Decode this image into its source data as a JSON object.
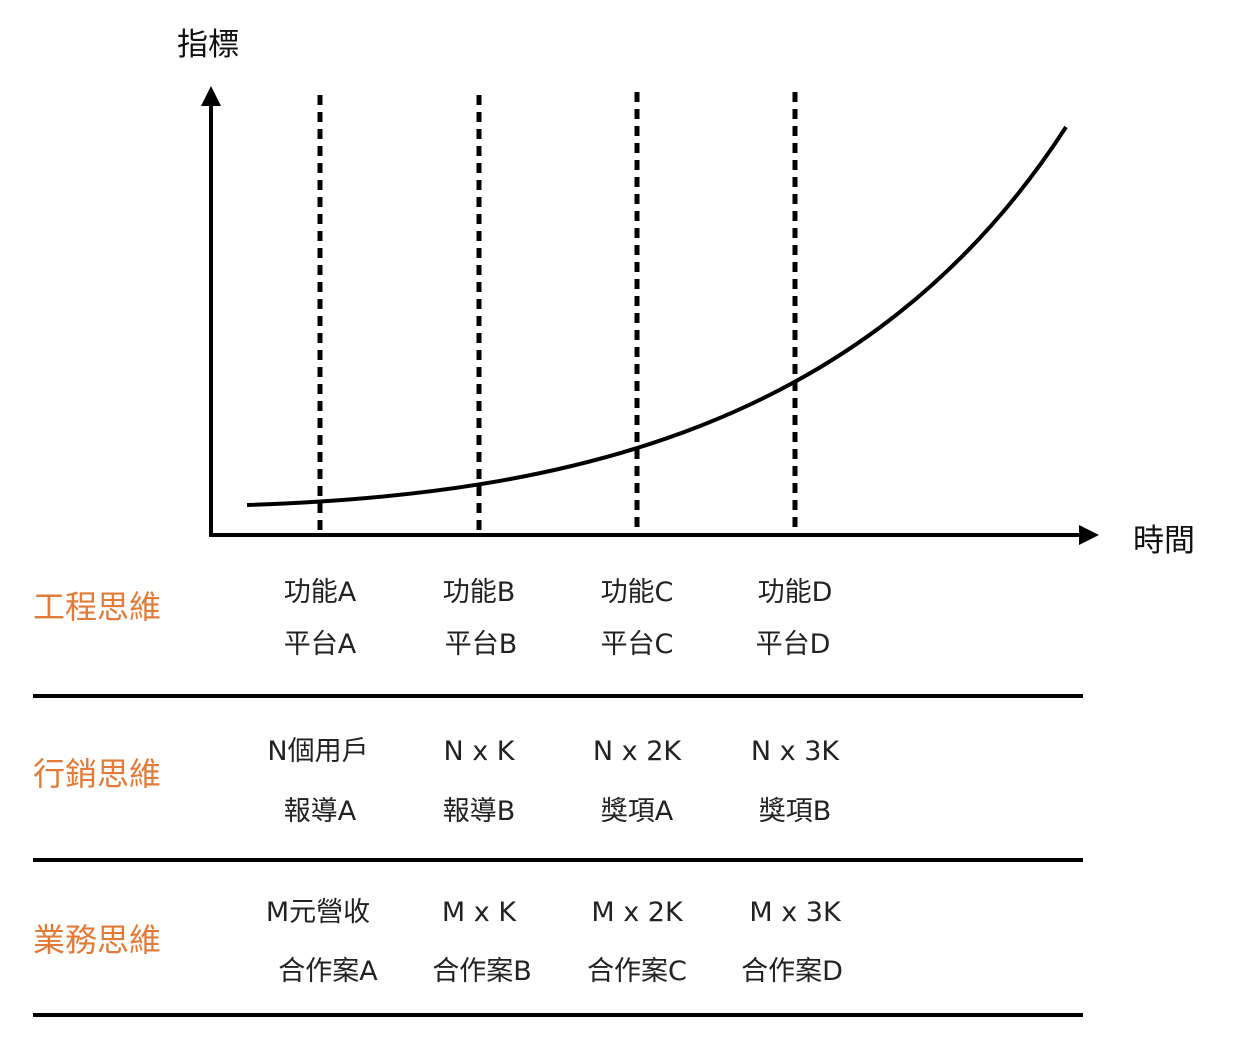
{
  "axes": {
    "y_label": "指標",
    "x_label": "時間"
  },
  "milestones": [
    "1",
    "2",
    "3",
    "4"
  ],
  "curve": {
    "description_shape": "exponential"
  },
  "accent_color": "#E07B39",
  "line_color": "#000000",
  "sections": [
    {
      "label": "工程思維",
      "rows": [
        [
          "功能A",
          "功能B",
          "功能C",
          "功能D"
        ],
        [
          "平台A",
          "平台B",
          "平台C",
          "平台D"
        ]
      ]
    },
    {
      "label": "行銷思維",
      "rows": [
        [
          "N個用戶",
          "N x K",
          "N x 2K",
          "N x 3K"
        ],
        [
          "報導A",
          "報導B",
          "獎項A",
          "獎項B"
        ]
      ]
    },
    {
      "label": "業務思維",
      "rows": [
        [
          "M元營收",
          "M x K",
          "M x 2K",
          "M x 3K"
        ],
        [
          "合作案A",
          "合作案B",
          "合作案C",
          "合作案D"
        ]
      ]
    }
  ]
}
